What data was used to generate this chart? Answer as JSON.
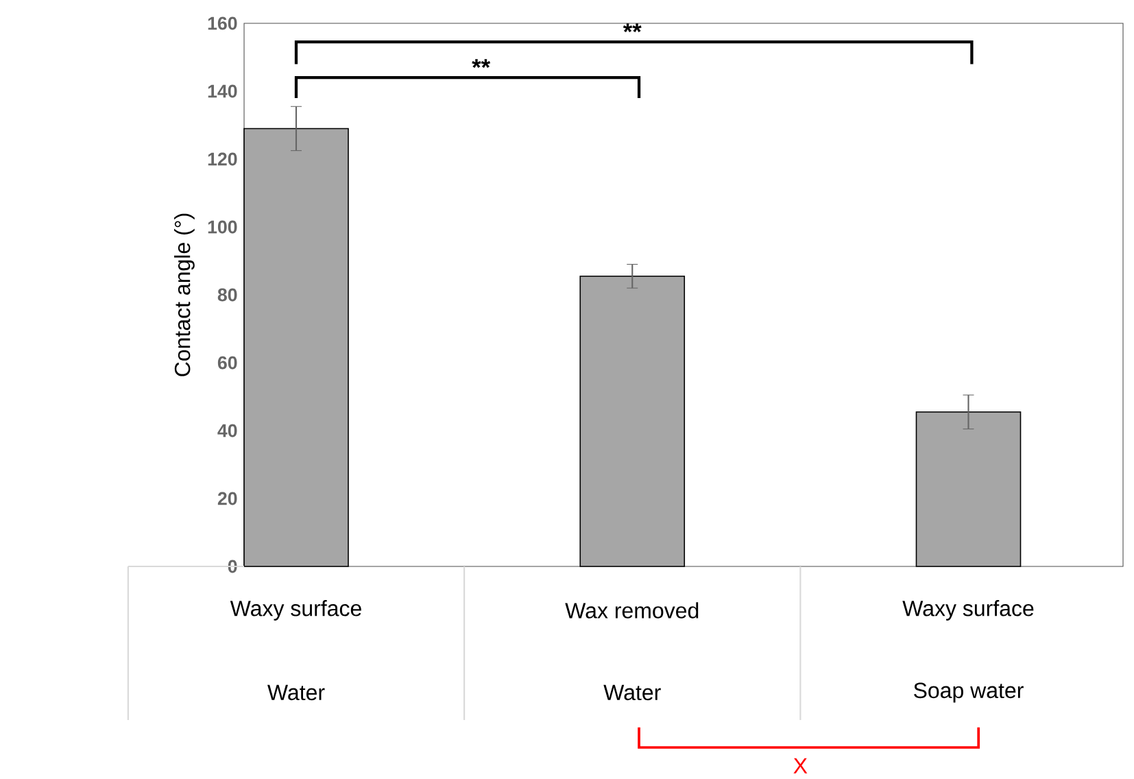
{
  "chart_data": {
    "type": "bar",
    "ylabel": "Contact angle (°)",
    "categories": [
      "Waxy surface",
      "Wax removed",
      "Waxy surface"
    ],
    "values": [
      129,
      85.5,
      45.5
    ],
    "errors": [
      6.5,
      3.5,
      5
    ],
    "color": "#a6a6a6",
    "ylim": [
      0,
      160
    ],
    "yticks": [
      0,
      20,
      40,
      60,
      80,
      100,
      120,
      140,
      160
    ],
    "grid": false,
    "annotations": [
      "Water",
      "Water",
      "Soap water",
      "**",
      "**",
      "X"
    ]
  }
}
